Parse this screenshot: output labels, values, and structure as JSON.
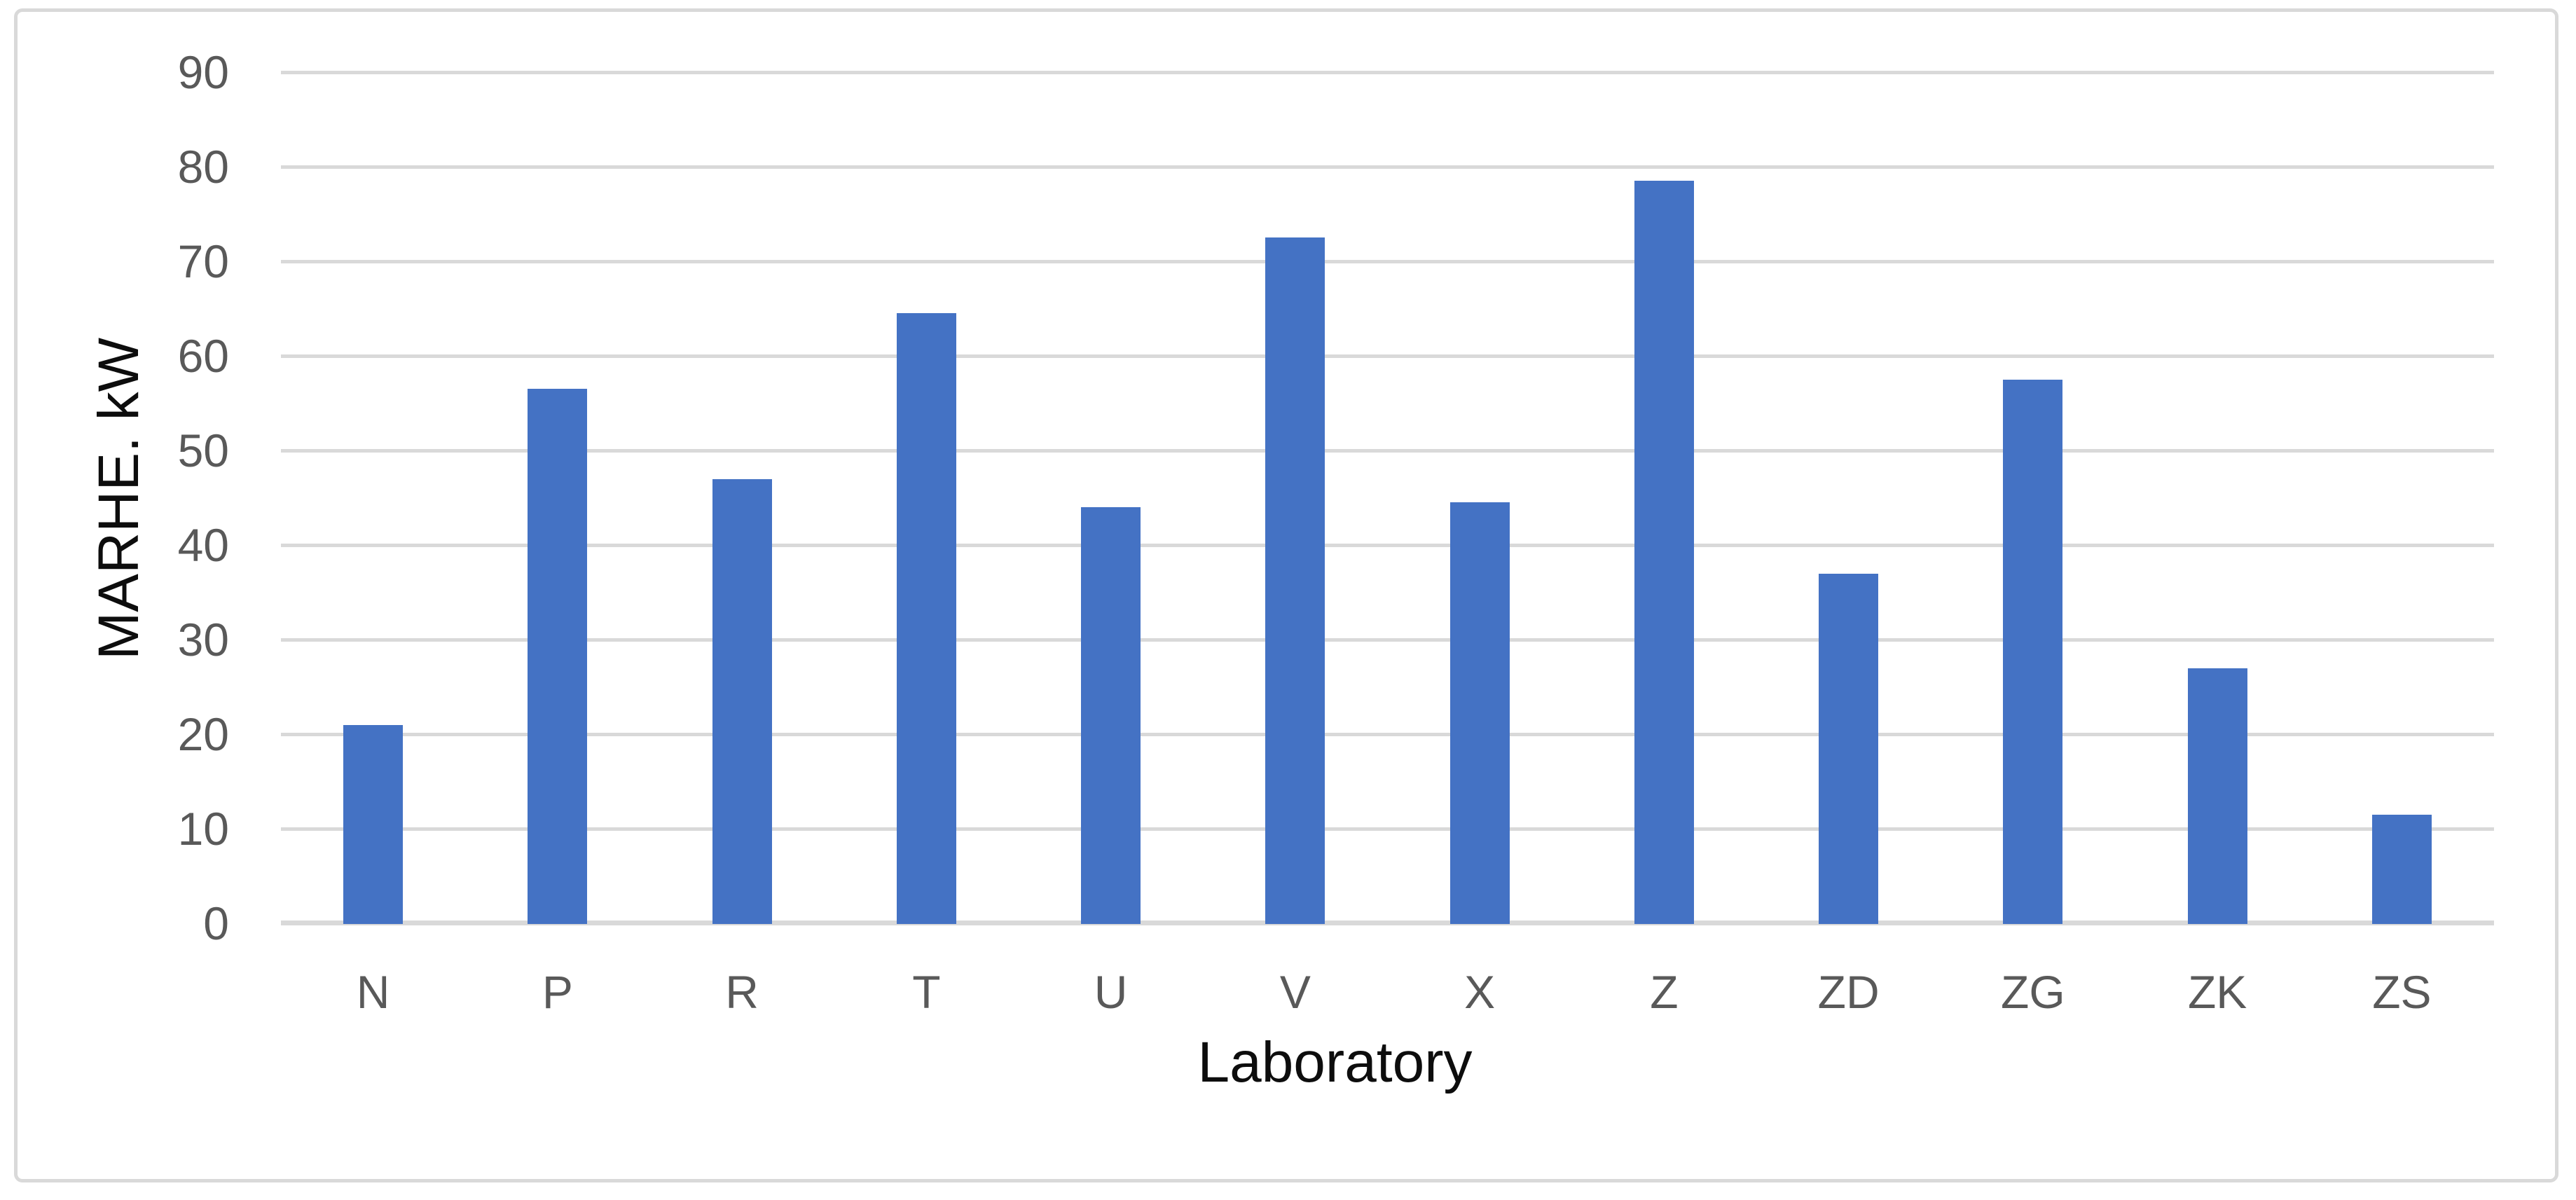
{
  "chart_data": {
    "type": "bar",
    "title": "",
    "categories": [
      "N",
      "P",
      "R",
      "T",
      "U",
      "V",
      "X",
      "Z",
      "ZD",
      "ZG",
      "ZK",
      "ZS"
    ],
    "values": [
      21,
      56.5,
      47,
      64.5,
      44,
      72.5,
      44.5,
      78.5,
      37,
      57.5,
      27,
      11.5
    ],
    "series_name": "MARHE",
    "xlabel": "Laboratory",
    "ylabel": "MARHE. kW",
    "ylim": [
      0,
      90
    ],
    "yticks": [
      0,
      10,
      20,
      30,
      40,
      50,
      60,
      70,
      80,
      90
    ],
    "grid": true,
    "legend": false,
    "bar_color": "#4472C4",
    "gridline_color": "#D9D9D9",
    "axis_line_color": "#D9D9D9",
    "tick_label_color": "#595959",
    "axis_title_color": "#0D0D0D",
    "frame_border_color": "#D9D9D9",
    "background_color": "#FFFFFF"
  }
}
